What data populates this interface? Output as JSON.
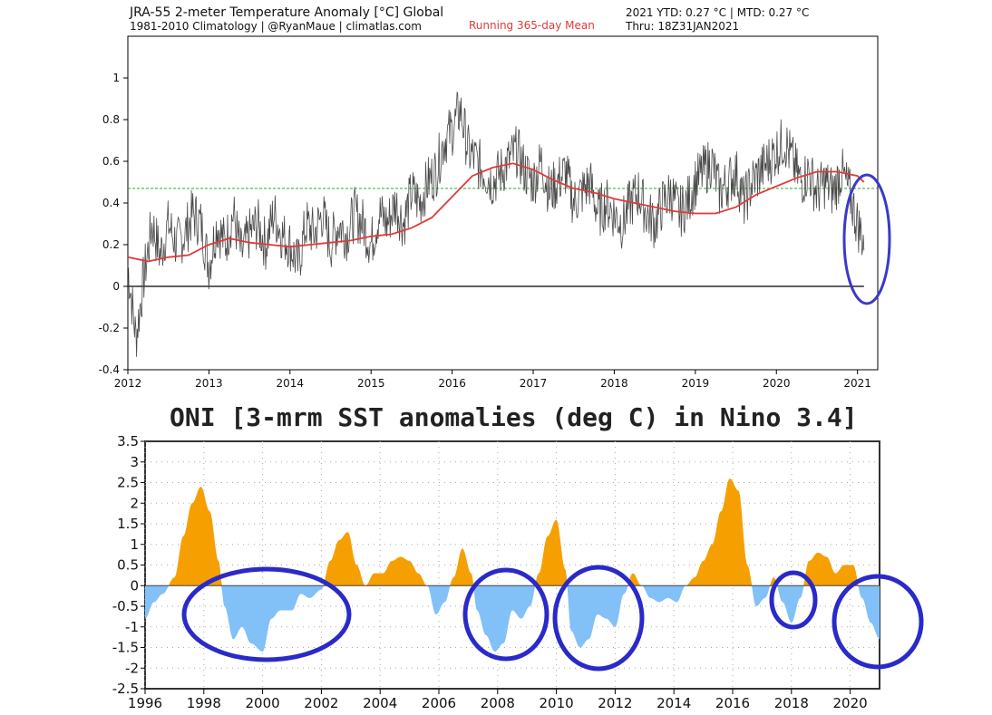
{
  "chart_data": [
    {
      "type": "line",
      "title": "JRA-55 2-meter Temperature Anomaly [°C] Global",
      "subtitle": "1981-2010 Climatology | @RyanMaue | climatlas.com",
      "legend_label": "Running 365-day Mean",
      "ytd_text": "2021 YTD: 0.27 °C | MTD: 0.27 °C",
      "thru_text": "Thru: 18Z31JAN2021",
      "xlim": [
        2012,
        2021.25
      ],
      "ylim": [
        -0.4,
        1.2
      ],
      "x_ticks": [
        "2012",
        "2013",
        "2014",
        "2015",
        "2016",
        "2017",
        "2018",
        "2019",
        "2020",
        "2021"
      ],
      "y_ticks": [
        "-0.4",
        "-0.2",
        "0",
        "0.2",
        "0.4",
        "0.6",
        "0.8",
        "1"
      ],
      "reference_line": 0.47,
      "colors": {
        "daily": "#4a4a4a",
        "mean": "#e03a3a",
        "reference": "#2eaa2e",
        "annotation": "#3a3ac8"
      },
      "series": [
        {
          "x": [
            2012.0,
            2012.1,
            2012.2,
            2012.3,
            2012.4,
            2012.5,
            2012.6,
            2012.7,
            2012.8,
            2012.9,
            2013.0,
            2013.1,
            2013.2,
            2013.3,
            2013.4,
            2013.5,
            2013.6,
            2013.7,
            2013.8,
            2013.9,
            2014.0,
            2014.1,
            2014.2,
            2014.3,
            2014.4,
            2014.5,
            2014.6,
            2014.7,
            2014.8,
            2014.9,
            2015.0,
            2015.1,
            2015.2,
            2015.3,
            2015.4,
            2015.5,
            2015.6,
            2015.7,
            2015.8,
            2015.9,
            2016.0,
            2016.1,
            2016.2,
            2016.3,
            2016.4,
            2016.5,
            2016.6,
            2016.7,
            2016.8,
            2016.9,
            2017.0,
            2017.1,
            2017.2,
            2017.3,
            2017.4,
            2017.5,
            2017.6,
            2017.7,
            2017.8,
            2017.9,
            2018.0,
            2018.1,
            2018.2,
            2018.3,
            2018.4,
            2018.5,
            2018.6,
            2018.7,
            2018.8,
            2018.9,
            2019.0,
            2019.1,
            2019.2,
            2019.3,
            2019.4,
            2019.5,
            2019.6,
            2019.7,
            2019.8,
            2019.9,
            2020.0,
            2020.1,
            2020.2,
            2020.3,
            2020.4,
            2020.5,
            2020.6,
            2020.7,
            2020.8,
            2020.9,
            2021.0,
            2021.08
          ],
          "values": [
            0.1,
            -0.25,
            0.05,
            0.3,
            0.15,
            0.3,
            0.2,
            0.25,
            0.35,
            0.3,
            0.1,
            0.3,
            0.2,
            0.35,
            0.15,
            0.25,
            0.3,
            0.2,
            0.35,
            0.25,
            0.2,
            0.1,
            0.3,
            0.25,
            0.35,
            0.2,
            0.3,
            0.25,
            0.35,
            0.3,
            0.2,
            0.35,
            0.3,
            0.4,
            0.3,
            0.45,
            0.4,
            0.5,
            0.55,
            0.7,
            0.75,
            0.85,
            0.65,
            0.6,
            0.55,
            0.5,
            0.55,
            0.6,
            0.65,
            0.55,
            0.5,
            0.6,
            0.45,
            0.5,
            0.55,
            0.4,
            0.45,
            0.5,
            0.35,
            0.4,
            0.35,
            0.3,
            0.4,
            0.45,
            0.35,
            0.3,
            0.4,
            0.45,
            0.35,
            0.4,
            0.5,
            0.55,
            0.6,
            0.45,
            0.5,
            0.55,
            0.4,
            0.5,
            0.55,
            0.6,
            0.65,
            0.7,
            0.6,
            0.5,
            0.55,
            0.45,
            0.5,
            0.45,
            0.55,
            0.45,
            0.3,
            0.22
          ]
        },
        {
          "name": "Running 365-day Mean",
          "x": [
            2012.0,
            2012.25,
            2012.5,
            2012.75,
            2013.0,
            2013.25,
            2013.5,
            2013.75,
            2014.0,
            2014.25,
            2014.5,
            2014.75,
            2015.0,
            2015.25,
            2015.5,
            2015.75,
            2016.0,
            2016.25,
            2016.5,
            2016.75,
            2017.0,
            2017.25,
            2017.5,
            2017.75,
            2018.0,
            2018.25,
            2018.5,
            2018.75,
            2019.0,
            2019.25,
            2019.5,
            2019.75,
            2020.0,
            2020.25,
            2020.5,
            2020.75,
            2021.0,
            2021.08
          ],
          "values": [
            0.14,
            0.12,
            0.14,
            0.15,
            0.2,
            0.23,
            0.21,
            0.2,
            0.19,
            0.2,
            0.21,
            0.22,
            0.24,
            0.25,
            0.28,
            0.33,
            0.43,
            0.53,
            0.57,
            0.59,
            0.56,
            0.51,
            0.47,
            0.45,
            0.42,
            0.4,
            0.38,
            0.36,
            0.35,
            0.35,
            0.38,
            0.44,
            0.48,
            0.52,
            0.55,
            0.55,
            0.53,
            0.5
          ]
        }
      ]
    },
    {
      "type": "area",
      "title": "ONI [3-mrm SST anomalies (deg C) in Nino 3.4]",
      "xlim": [
        1996,
        2021
      ],
      "ylim": [
        -2.5,
        3.5
      ],
      "x_ticks": [
        "1996",
        "1998",
        "2000",
        "2002",
        "2004",
        "2006",
        "2008",
        "2010",
        "2012",
        "2014",
        "2016",
        "2018",
        "2020"
      ],
      "y_ticks": [
        "3.5",
        "3",
        "2.5",
        "2",
        "1.5",
        "1",
        "0.5",
        "0",
        "-0.5",
        "-1",
        "-1.5",
        "-2",
        "-2.5"
      ],
      "colors": {
        "positive": "#f5a000",
        "negative": "#82c0f8",
        "annotation": "#2a2ac8"
      },
      "x": [
        1996.0,
        1996.3,
        1996.6,
        1997.0,
        1997.3,
        1997.6,
        1997.9,
        1998.2,
        1998.5,
        1998.7,
        1999.0,
        1999.3,
        1999.6,
        2000.0,
        2000.3,
        2000.6,
        2001.0,
        2001.3,
        2001.6,
        2002.0,
        2002.3,
        2002.6,
        2002.9,
        2003.2,
        2003.5,
        2003.8,
        2004.1,
        2004.4,
        2004.7,
        2005.0,
        2005.3,
        2005.6,
        2005.9,
        2006.2,
        2006.5,
        2006.8,
        2007.1,
        2007.3,
        2007.6,
        2007.9,
        2008.2,
        2008.5,
        2008.8,
        2009.1,
        2009.4,
        2009.7,
        2010.0,
        2010.3,
        2010.5,
        2010.8,
        2011.1,
        2011.4,
        2011.7,
        2012.0,
        2012.3,
        2012.6,
        2012.9,
        2013.2,
        2013.5,
        2013.8,
        2014.1,
        2014.4,
        2014.7,
        2015.0,
        2015.3,
        2015.6,
        2015.9,
        2016.2,
        2016.5,
        2016.8,
        2017.1,
        2017.4,
        2017.7,
        2018.0,
        2018.3,
        2018.6,
        2018.9,
        2019.2,
        2019.5,
        2019.8,
        2020.1,
        2020.4,
        2020.7,
        2021.0
      ],
      "values": [
        -0.8,
        -0.4,
        -0.2,
        0.2,
        1.2,
        2.0,
        2.4,
        1.8,
        0.6,
        -0.5,
        -1.3,
        -1.0,
        -1.4,
        -1.6,
        -0.8,
        -0.6,
        -0.6,
        -0.2,
        -0.3,
        -0.1,
        0.6,
        1.1,
        1.3,
        0.5,
        0.0,
        0.3,
        0.3,
        0.6,
        0.7,
        0.6,
        0.3,
        0.0,
        -0.7,
        -0.4,
        0.2,
        0.9,
        0.3,
        -0.6,
        -1.2,
        -1.6,
        -1.4,
        -0.6,
        -0.8,
        -0.5,
        0.3,
        1.2,
        1.6,
        0.4,
        -1.1,
        -1.5,
        -1.3,
        -0.7,
        -0.8,
        -1.0,
        -0.2,
        0.3,
        0.0,
        -0.3,
        -0.4,
        -0.3,
        -0.4,
        0.0,
        0.2,
        0.6,
        1.0,
        1.8,
        2.6,
        2.3,
        0.5,
        -0.5,
        -0.3,
        0.2,
        -0.4,
        -0.9,
        -0.3,
        0.6,
        0.8,
        0.7,
        0.3,
        0.5,
        0.5,
        -0.3,
        -0.9,
        -1.3
      ]
    }
  ]
}
